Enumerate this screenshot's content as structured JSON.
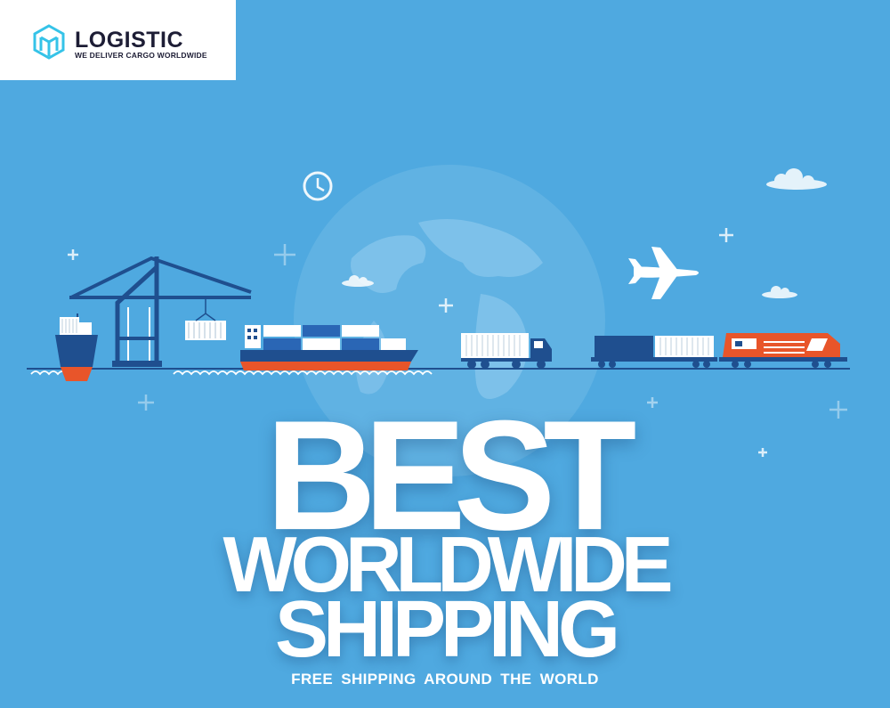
{
  "brand": {
    "name": "LOGISTIC",
    "tagline": "WE DELIVER CARGO WORLDWIDE"
  },
  "headline": {
    "line1": "BEST",
    "line2": "WORLDWIDE",
    "line3": "SHIPPING"
  },
  "subheadline": "FREE SHIPPING AROUND THE WORLD",
  "colors": {
    "background": "#4fa9e0",
    "navy": "#1f4f8f",
    "orange": "#e8552a",
    "white": "#ffffff",
    "logo_cyan": "#35c3e8"
  },
  "illustration": {
    "icons": [
      "clock-icon",
      "globe-icon",
      "harbor-crane-icon",
      "container-ship-icon",
      "cargo-ship-icon",
      "truck-icon",
      "freight-train-icon",
      "airplane-icon",
      "cloud-icon",
      "sparkle-plus-icon"
    ]
  }
}
